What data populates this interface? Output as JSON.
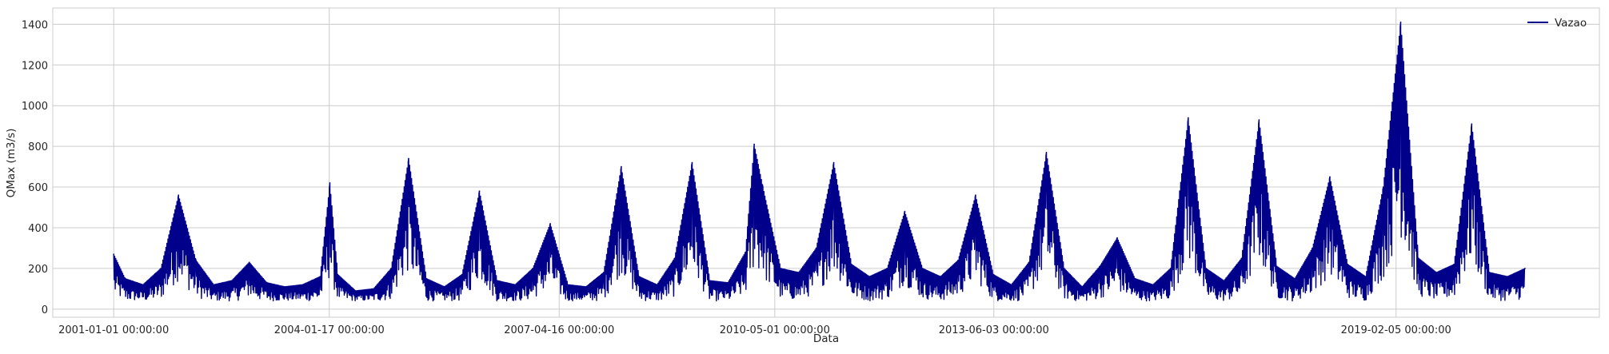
{
  "chart_data": {
    "type": "line",
    "title": "",
    "xlabel": "Data",
    "ylabel": "QMax (m3/s)",
    "x_ticks": [
      "2001-01-01 00:00:00",
      "2004-01-17 00:00:00",
      "2007-04-16 00:00:00",
      "2010-05-01 00:00:00",
      "2013-06-03 00:00:00",
      "2019-02-05 00:00:00"
    ],
    "y_ticks": [
      0,
      200,
      400,
      600,
      800,
      1000,
      1200,
      1400
    ],
    "xlim": [
      "2000-02-22",
      "2021-12-19"
    ],
    "ylim": [
      -40,
      1480
    ],
    "grid": true,
    "legend_position": "top-right",
    "line_color": "#00008b",
    "series": [
      {
        "name": "Vazao",
        "color": "#00008b",
        "x": [
          "2001-01-01",
          "2001-03-01",
          "2001-06-01",
          "2001-09-01",
          "2001-12-01",
          "2002-03-01",
          "2002-06-01",
          "2002-09-01",
          "2002-12-01",
          "2003-03-01",
          "2003-06-01",
          "2003-09-01",
          "2003-12-01",
          "2004-01-20",
          "2004-03-01",
          "2004-06-01",
          "2004-09-01",
          "2004-12-01",
          "2005-03-01",
          "2005-06-01",
          "2005-09-01",
          "2005-12-01",
          "2006-03-01",
          "2006-06-01",
          "2006-09-01",
          "2006-12-01",
          "2007-03-01",
          "2007-06-01",
          "2007-09-01",
          "2007-12-01",
          "2008-03-01",
          "2008-06-01",
          "2008-09-01",
          "2008-12-01",
          "2009-03-01",
          "2009-06-01",
          "2009-09-01",
          "2009-12-01",
          "2010-01-15",
          "2010-03-01",
          "2010-06-01",
          "2010-09-01",
          "2010-12-01",
          "2011-03-01",
          "2011-06-01",
          "2011-09-01",
          "2011-12-01",
          "2012-03-01",
          "2012-06-01",
          "2012-09-01",
          "2012-12-01",
          "2013-03-01",
          "2013-06-01",
          "2013-09-01",
          "2013-12-01",
          "2014-03-01",
          "2014-06-01",
          "2014-09-01",
          "2014-12-01",
          "2015-03-01",
          "2015-06-01",
          "2015-09-01",
          "2015-12-01",
          "2016-03-01",
          "2016-06-01",
          "2016-09-01",
          "2016-12-01",
          "2017-03-01",
          "2017-06-01",
          "2017-09-01",
          "2017-12-01",
          "2018-03-01",
          "2018-06-01",
          "2018-09-01",
          "2018-12-01",
          "2019-03-01",
          "2019-06-01",
          "2019-09-01",
          "2019-12-01",
          "2020-03-01",
          "2020-06-01",
          "2020-09-01",
          "2020-12-01"
        ],
        "y": [
          270,
          150,
          120,
          200,
          560,
          240,
          120,
          140,
          230,
          130,
          110,
          120,
          160,
          620,
          170,
          90,
          100,
          200,
          740,
          150,
          110,
          170,
          580,
          140,
          120,
          200,
          420,
          120,
          110,
          180,
          700,
          160,
          120,
          250,
          720,
          140,
          130,
          280,
          810,
          600,
          200,
          180,
          300,
          720,
          220,
          160,
          200,
          480,
          200,
          160,
          240,
          560,
          170,
          120,
          230,
          770,
          200,
          110,
          210,
          350,
          150,
          120,
          200,
          940,
          200,
          140,
          250,
          930,
          210,
          150,
          300,
          650,
          220,
          160,
          600,
          1410,
          250,
          180,
          220,
          910,
          180,
          160,
          200
        ]
      }
    ]
  }
}
